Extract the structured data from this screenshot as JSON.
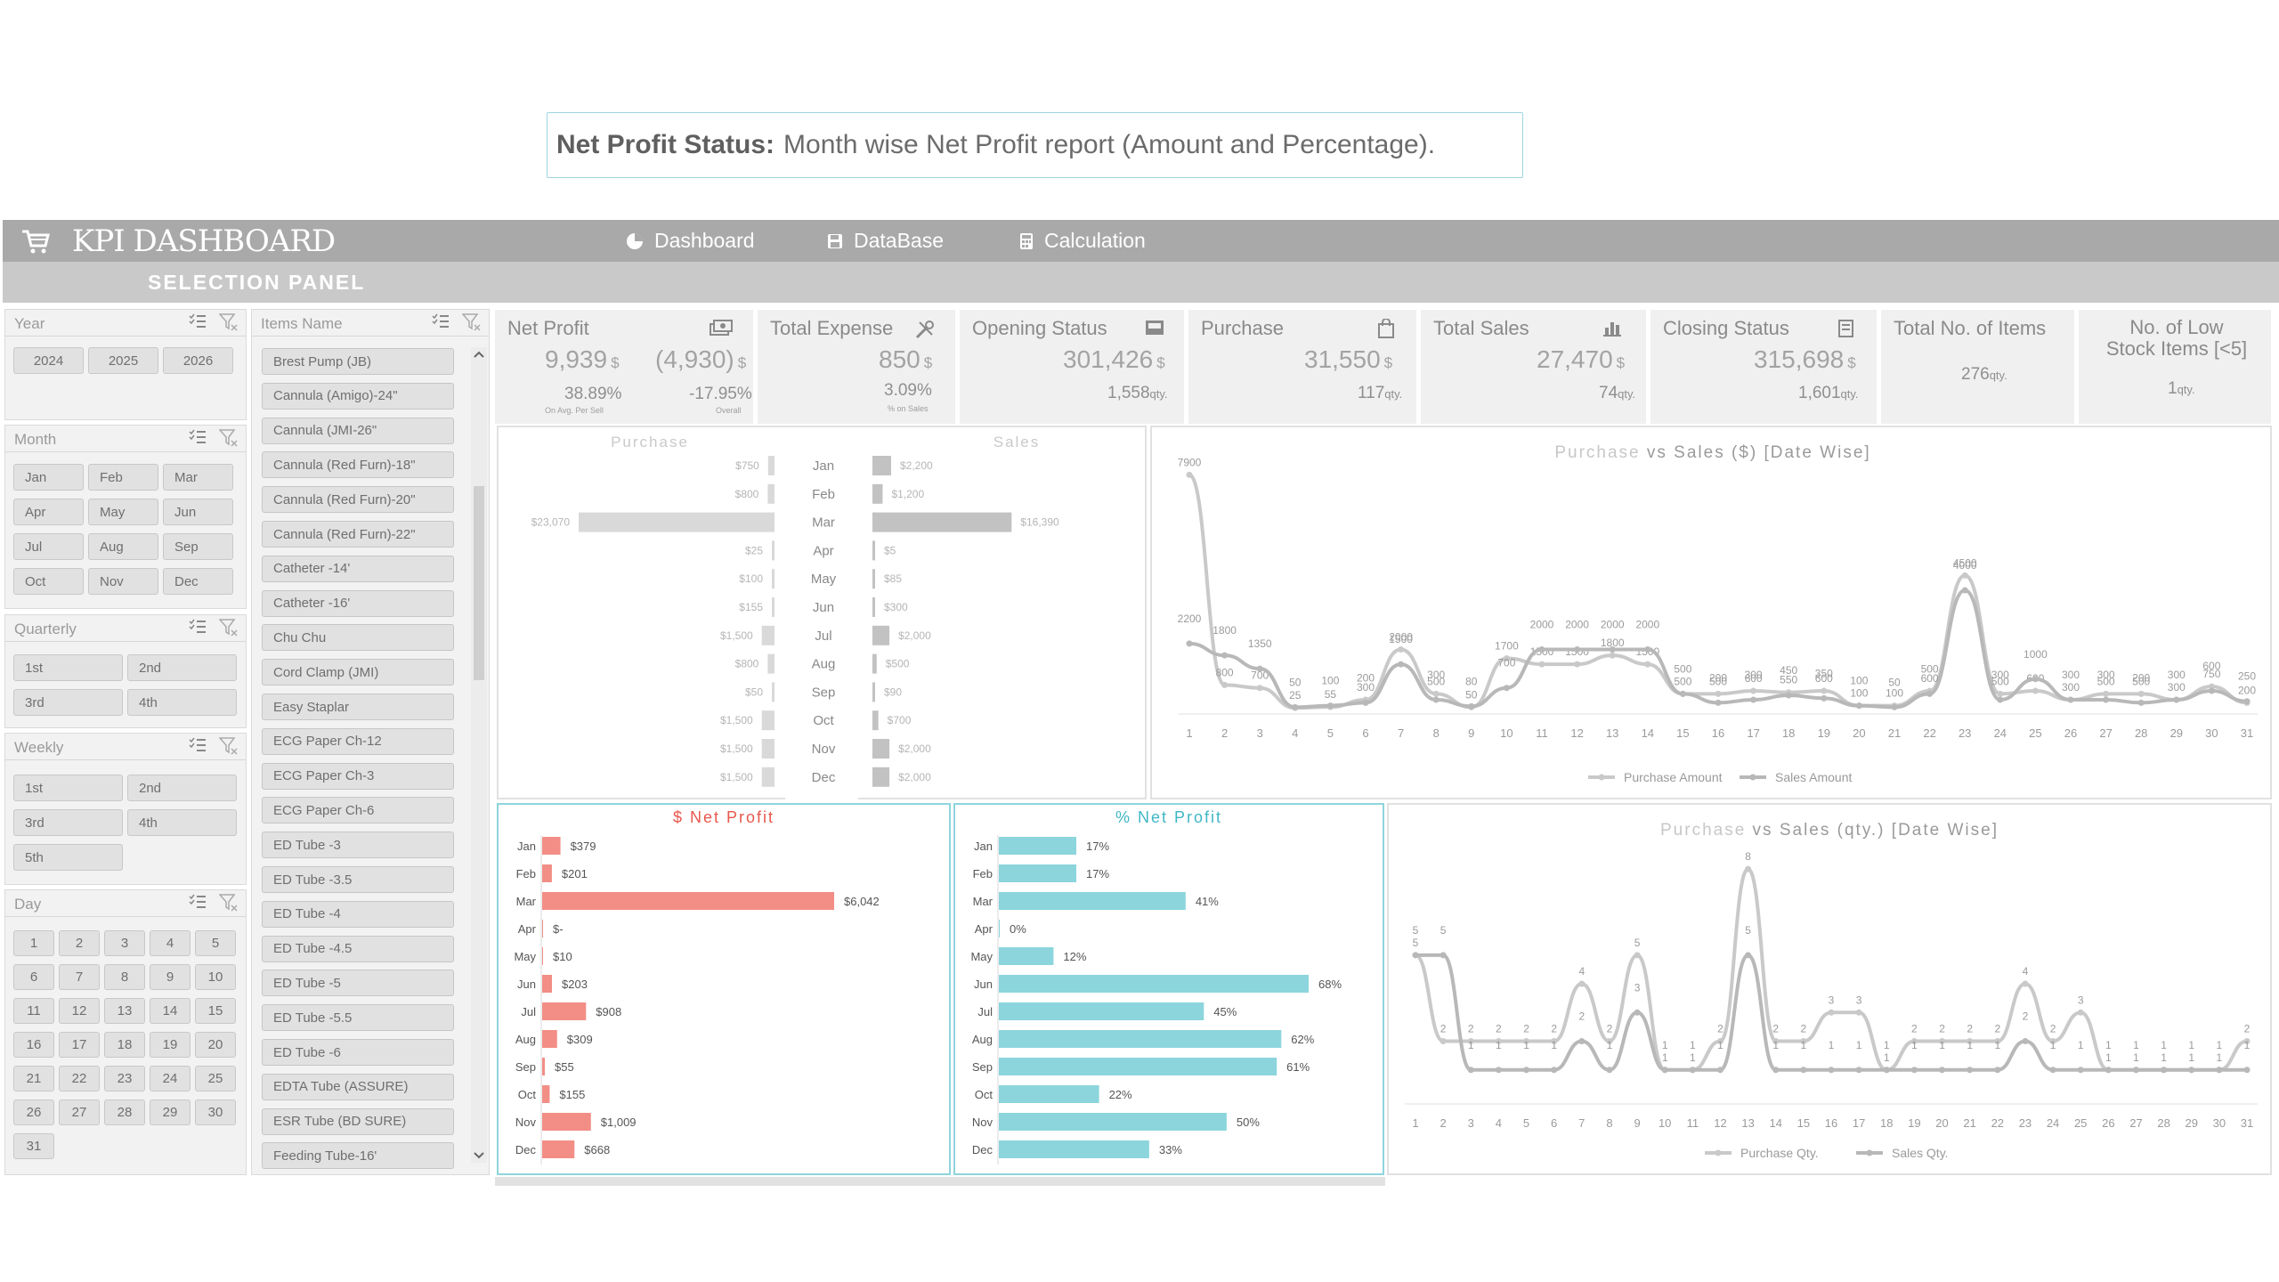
{
  "caption": {
    "bold": "Net Profit Status:",
    "text": "Month wise Net Profit report (Amount and Percentage)."
  },
  "header": {
    "title": "KPI DASHBOARD",
    "nav": [
      {
        "label": "Dashboard",
        "icon": "pie-chart-icon"
      },
      {
        "label": "DataBase",
        "icon": "save-icon"
      },
      {
        "label": "Calculation",
        "icon": "calculator-icon"
      }
    ],
    "subtitle": "SELECTION PANEL"
  },
  "slicers": {
    "year": {
      "title": "Year",
      "options": [
        "2024",
        "2025",
        "2026"
      ]
    },
    "month": {
      "title": "Month",
      "options": [
        "Jan",
        "Feb",
        "Mar",
        "Apr",
        "May",
        "Jun",
        "Jul",
        "Aug",
        "Sep",
        "Oct",
        "Nov",
        "Dec"
      ]
    },
    "quarterly": {
      "title": "Quarterly",
      "options": [
        "1st",
        "2nd",
        "3rd",
        "4th"
      ]
    },
    "weekly": {
      "title": "Weekly",
      "options": [
        "1st",
        "2nd",
        "3rd",
        "4th",
        "5th"
      ]
    },
    "day": {
      "title": "Day",
      "options": [
        "1",
        "2",
        "3",
        "4",
        "5",
        "6",
        "7",
        "8",
        "9",
        "10",
        "11",
        "12",
        "13",
        "14",
        "15",
        "16",
        "17",
        "18",
        "19",
        "20",
        "21",
        "22",
        "23",
        "24",
        "25",
        "26",
        "27",
        "28",
        "29",
        "30",
        "31"
      ]
    },
    "items": {
      "title": "Items Name",
      "options": [
        "Brest Pump (JB)",
        "Cannula (Amigo)-24\"",
        "Cannula (JMI-26\"",
        "Cannula (Red Furn)-18\"",
        "Cannula (Red Furn)-20\"",
        "Cannula (Red Furn)-22\"",
        "Catheter -14'",
        "Catheter -16'",
        "Chu Chu",
        "Cord Clamp (JMI)",
        "Easy Staplar",
        "ECG Paper Ch-12",
        "ECG Paper Ch-3",
        "ECG Paper Ch-6",
        "ED Tube -3",
        "ED Tube -3.5",
        "ED Tube -4",
        "ED Tube -4.5",
        "ED Tube -5",
        "ED Tube -5.5",
        "ED Tube -6",
        "EDTA Tube (ASSURE)",
        "ESR Tube (BD SURE)",
        "Feeding Tube-16'"
      ]
    }
  },
  "kpis": {
    "net_profit": {
      "title": "Net Profit",
      "value": "9,939",
      "unit": "$",
      "value2": "(4,930)",
      "unit2": "$",
      "pct": "38.89%",
      "pct_note": "On Avg. Per Sell",
      "pct2": "-17.95%",
      "pct2_note": "Overall"
    },
    "total_expense": {
      "title": "Total Expense",
      "value": "850",
      "unit": "$",
      "pct": "3.09%",
      "pct_note": "% on Sales"
    },
    "opening_status": {
      "title": "Opening Status",
      "value": "301,426",
      "unit": "$",
      "qty": "1,558",
      "qty_unit": "qty."
    },
    "purchase": {
      "title": "Purchase",
      "value": "31,550",
      "unit": "$",
      "qty": "117",
      "qty_unit": "qty."
    },
    "total_sales": {
      "title": "Total Sales",
      "value": "27,470",
      "unit": "$",
      "qty": "74",
      "qty_unit": "qty."
    },
    "closing_status": {
      "title": "Closing Status",
      "value": "315,698",
      "unit": "$",
      "qty": "1,601",
      "qty_unit": "qty."
    },
    "total_items": {
      "title": "Total No. of Items",
      "qty": "276",
      "qty_unit": "qty."
    },
    "low_stock": {
      "title_line1": "No. of Low",
      "title_line2": "Stock Items [<5]",
      "qty": "1",
      "qty_unit": "qty."
    }
  },
  "chart_data": [
    {
      "type": "bar",
      "title_left": "Purchase",
      "title_right": "Sales",
      "categories": [
        "Jan",
        "Feb",
        "Mar",
        "Apr",
        "May",
        "Jun",
        "Jul",
        "Aug",
        "Sep",
        "Oct",
        "Nov",
        "Dec"
      ],
      "series": [
        {
          "name": "Purchase",
          "values": [
            750,
            800,
            23070,
            25,
            100,
            155,
            1500,
            800,
            50,
            1500,
            1500,
            1500
          ],
          "labels": [
            "$750",
            "$800",
            "$23,070",
            "$25",
            "$100",
            "$155",
            "$1,500",
            "$800",
            "$50",
            "$1,500",
            "$1,500",
            "$1,500"
          ]
        },
        {
          "name": "Sales",
          "values": [
            2200,
            1200,
            16390,
            5,
            85,
            300,
            2000,
            500,
            90,
            700,
            2000,
            2000
          ],
          "labels": [
            "$2,200",
            "$1,200",
            "$16,390",
            "$5",
            "$85",
            "$300",
            "$2,000",
            "$500",
            "$90",
            "$700",
            "$2,000",
            "$2,000"
          ]
        }
      ]
    },
    {
      "type": "line",
      "title": "Purchase vs Sales ($) [Date Wise]",
      "x": [
        "1",
        "2",
        "3",
        "4",
        "5",
        "6",
        "7",
        "8",
        "9",
        "10",
        "11",
        "12",
        "13",
        "14",
        "15",
        "16",
        "17",
        "18",
        "19",
        "20",
        "21",
        "22",
        "23",
        "24",
        "25",
        "26",
        "27",
        "28",
        "29",
        "30",
        "31"
      ],
      "series": [
        {
          "name": "Purchase Amount",
          "values": [
            7900,
            800,
            700,
            25,
            55,
            300,
            2000,
            500,
            50,
            1700,
            1500,
            1500,
            1800,
            1500,
            500,
            500,
            600,
            550,
            600,
            100,
            100,
            600,
            4500,
            500,
            600,
            300,
            500,
            500,
            300,
            750,
            200
          ]
        },
        {
          "name": "Sales Amount",
          "values": [
            2200,
            1800,
            1350,
            50,
            100,
            200,
            1500,
            300,
            80,
            700,
            2000,
            2000,
            2000,
            2000,
            500,
            200,
            300,
            450,
            350,
            100,
            50,
            500,
            4000,
            300,
            1000,
            300,
            300,
            200,
            300,
            600,
            250
          ]
        }
      ],
      "point_labels": [
        "2,200",
        "7,900",
        "1,800",
        "800",
        "700",
        "1,350",
        "25",
        "55",
        "300",
        "2,000",
        "1,500",
        "500",
        "500",
        "50",
        "700",
        "1,600",
        "1,500",
        "2,000",
        "2,000",
        "1,500",
        "1,800",
        "2,000",
        "2,000",
        "1,500",
        "500",
        "500",
        "500",
        "600",
        "550",
        "600",
        "100",
        "100",
        "600",
        "4,000",
        "4,500",
        "500",
        "600",
        "1,000",
        "300",
        "500",
        "300",
        "750",
        "600",
        "200"
      ]
    },
    {
      "type": "bar",
      "title": "$ Net Profit",
      "categories": [
        "Jan",
        "Feb",
        "Mar",
        "Apr",
        "May",
        "Jun",
        "Jul",
        "Aug",
        "Sep",
        "Oct",
        "Nov",
        "Dec"
      ],
      "values": [
        379,
        201,
        6042,
        0,
        10,
        203,
        908,
        309,
        55,
        155,
        1009,
        668
      ],
      "labels": [
        "$379",
        "$201",
        "$6,042",
        "$-",
        "$10",
        "$203",
        "$908",
        "$309",
        "$55",
        "$155",
        "$1,009",
        "$668"
      ],
      "color": "#f28e86"
    },
    {
      "type": "bar",
      "title": "% Net Profit",
      "categories": [
        "Jan",
        "Feb",
        "Mar",
        "Apr",
        "May",
        "Jun",
        "Jul",
        "Aug",
        "Sep",
        "Oct",
        "Nov",
        "Dec"
      ],
      "values": [
        17,
        17,
        41,
        0,
        12,
        68,
        45,
        62,
        61,
        22,
        50,
        33
      ],
      "labels": [
        "17%",
        "17%",
        "41%",
        "0%",
        "12%",
        "68%",
        "45%",
        "62%",
        "61%",
        "22%",
        "50%",
        "33%"
      ],
      "color": "#8cd5dc"
    },
    {
      "type": "line",
      "title": "Purchase vs Sales (qty.) [Date Wise]",
      "x": [
        "1",
        "2",
        "3",
        "4",
        "5",
        "6",
        "7",
        "8",
        "9",
        "10",
        "11",
        "12",
        "13",
        "14",
        "15",
        "16",
        "17",
        "18",
        "19",
        "20",
        "21",
        "22",
        "23",
        "24",
        "25",
        "26",
        "27",
        "28",
        "29",
        "30",
        "31"
      ],
      "series": [
        {
          "name": "Purchase Qty.",
          "values": [
            5,
            2,
            2,
            2,
            2,
            2,
            4,
            2,
            5,
            1,
            1,
            2,
            8,
            2,
            2,
            3,
            3,
            1,
            2,
            2,
            2,
            2,
            4,
            2,
            3,
            1,
            1,
            1,
            1,
            1,
            2
          ]
        },
        {
          "name": "Sales Qty.",
          "values": [
            5,
            5,
            1,
            1,
            1,
            1,
            2,
            1,
            3,
            1,
            1,
            1,
            5,
            1,
            1,
            1,
            1,
            1,
            1,
            1,
            1,
            1,
            2,
            1,
            1,
            1,
            1,
            1,
            1,
            1,
            1
          ]
        }
      ],
      "ylabels_visible": [
        "5",
        "5",
        "2",
        "2",
        "2",
        "1",
        "2",
        "2",
        "4",
        "2",
        "5",
        "3",
        "1",
        "1",
        "2",
        "1",
        "5",
        "8",
        "1",
        "2",
        "2",
        "1",
        "3",
        "3",
        "1",
        "2",
        "2",
        "2",
        "2",
        "4",
        "2",
        "3",
        "1",
        "1",
        "1",
        "1",
        "2",
        "1",
        "2"
      ]
    }
  ],
  "colors": {
    "topbar": "#a9a9a9",
    "subbar": "#c9c9c9",
    "net_profit_red": "#e8574c",
    "pct_teal": "#3fb7c6"
  }
}
